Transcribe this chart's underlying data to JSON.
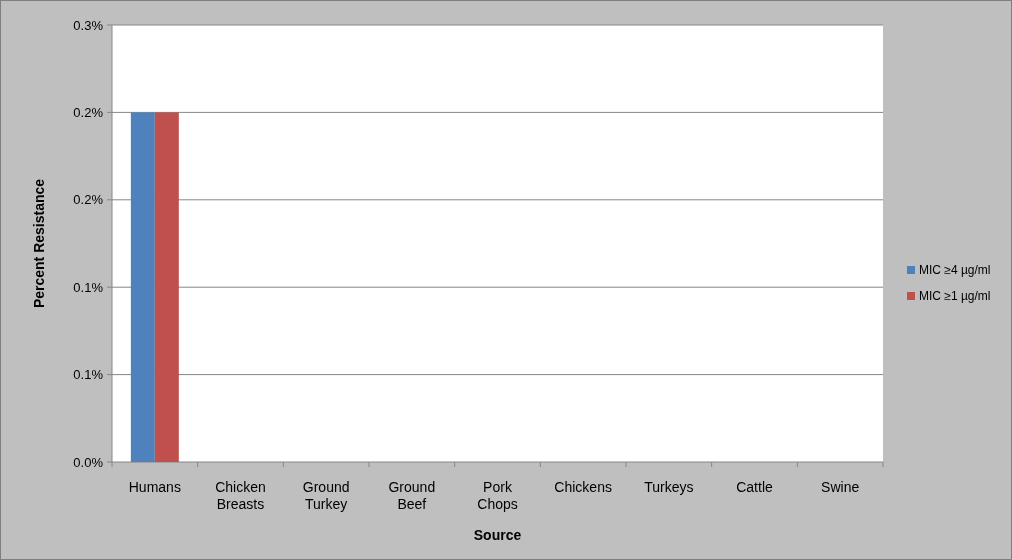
{
  "chart_data": {
    "type": "bar",
    "xlabel": "Source",
    "ylabel": "Percent Resistance",
    "categories": [
      "Humans",
      "Chicken Breasts",
      "Ground Turkey",
      "Ground Beef",
      "Pork Chops",
      "Chickens",
      "Turkeys",
      "Cattle",
      "Swine"
    ],
    "series": [
      {
        "name": "MIC ≥4  µg/ml",
        "color": "#4f81bd",
        "values": [
          0.24,
          0,
          0,
          0,
          0,
          0,
          0,
          0,
          0
        ]
      },
      {
        "name": "MIC ≥1  µg/ml",
        "color": "#c0504d",
        "values": [
          0.24,
          0,
          0,
          0,
          0,
          0,
          0,
          0,
          0
        ]
      }
    ],
    "ylim": [
      0,
      0.3
    ],
    "yticks": [
      {
        "value": 0,
        "label": "0.0%"
      },
      {
        "value": 0.06,
        "label": "0.1%"
      },
      {
        "value": 0.12,
        "label": "0.1%"
      },
      {
        "value": 0.18,
        "label": "0.2%"
      },
      {
        "value": 0.24,
        "label": "0.2%"
      },
      {
        "value": 0.3,
        "label": "0.3%"
      }
    ],
    "grid": "y",
    "legend": "right"
  }
}
